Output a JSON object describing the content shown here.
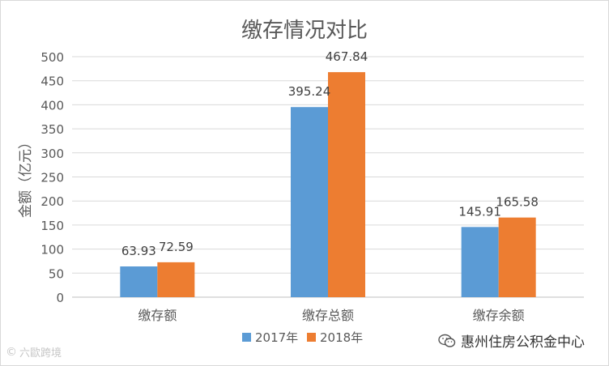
{
  "chart_data": {
    "type": "bar",
    "title": "缴存情况对比",
    "ylabel": "金额（亿元）",
    "xlabel": "",
    "categories": [
      "缴存额",
      "缴存总额",
      "缴存余额"
    ],
    "series": [
      {
        "name": "2017年",
        "values": [
          63.93,
          395.24,
          145.91
        ],
        "color": "#5b9bd5"
      },
      {
        "name": "2018年",
        "values": [
          72.59,
          467.84,
          165.58
        ],
        "color": "#ed7d31"
      }
    ],
    "ylim": [
      0,
      500
    ],
    "yticks": [
      0,
      50,
      100,
      150,
      200,
      250,
      300,
      350,
      400,
      450,
      500
    ],
    "grid": true,
    "legend": "bottom"
  },
  "watermarks": {
    "left_text": "六歐跨境",
    "right_text": "惠州住房公积金中心",
    "right_icon": "wechat-icon"
  }
}
